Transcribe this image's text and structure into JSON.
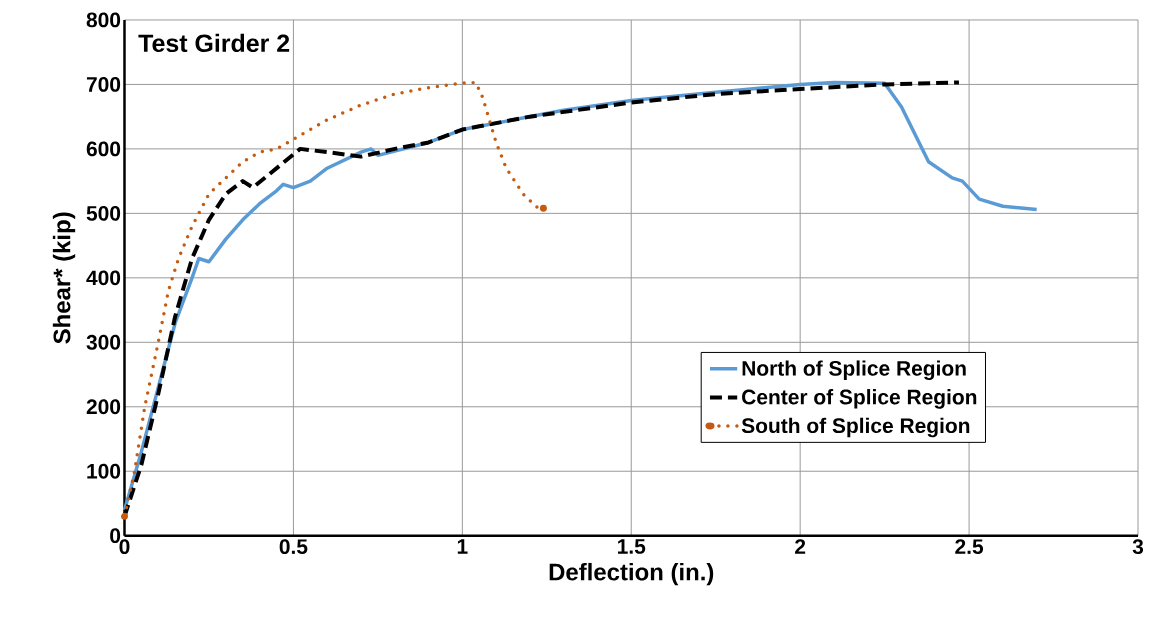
{
  "chart_data": {
    "type": "line",
    "title": "Test Girder 2",
    "xlabel": "Deflection (in.)",
    "ylabel": "Shear* (kip)",
    "xlim": [
      0,
      3
    ],
    "ylim": [
      0,
      800
    ],
    "xticks": [
      0,
      0.5,
      1,
      1.5,
      2,
      2.5,
      3
    ],
    "yticks": [
      0,
      100,
      200,
      300,
      400,
      500,
      600,
      700,
      800
    ],
    "grid": true,
    "legend": "bottom right",
    "series": [
      {
        "name": "North of Splice Region",
        "color": "#5b9bd5",
        "line_style": "solid",
        "x": [
          0,
          0.05,
          0.1,
          0.15,
          0.2,
          0.22,
          0.25,
          0.3,
          0.35,
          0.4,
          0.45,
          0.47,
          0.5,
          0.55,
          0.6,
          0.7,
          0.73,
          0.75,
          0.9,
          1.0,
          1.1,
          1.3,
          1.5,
          1.75,
          2.0,
          2.1,
          2.25,
          2.3,
          2.38,
          2.45,
          2.48,
          2.53,
          2.6,
          2.7
        ],
        "values": [
          40,
          130,
          230,
          330,
          400,
          430,
          425,
          460,
          490,
          515,
          535,
          545,
          540,
          550,
          570,
          595,
          600,
          590,
          610,
          630,
          640,
          660,
          675,
          688,
          700,
          703,
          702,
          665,
          580,
          555,
          550,
          522,
          511,
          506
        ]
      },
      {
        "name": "Center of Splice Region",
        "color": "#000000",
        "line_style": "dashed",
        "x": [
          0,
          0.05,
          0.1,
          0.15,
          0.2,
          0.25,
          0.3,
          0.35,
          0.38,
          0.45,
          0.52,
          0.6,
          0.7,
          0.8,
          0.9,
          1.0,
          1.05,
          1.2,
          1.5,
          1.75,
          2.0,
          2.25,
          2.47
        ],
        "values": [
          30,
          110,
          220,
          340,
          430,
          490,
          530,
          550,
          540,
          570,
          600,
          595,
          588,
          600,
          610,
          630,
          635,
          650,
          672,
          685,
          693,
          700,
          703
        ]
      },
      {
        "name": "South of Splice Region",
        "color": "#c55a11",
        "line_style": "dotted",
        "x": [
          0,
          0.03,
          0.06,
          0.1,
          0.13,
          0.16,
          0.2,
          0.25,
          0.3,
          0.35,
          0.4,
          0.45,
          0.5,
          0.6,
          0.7,
          0.8,
          0.9,
          1.0,
          1.04,
          1.06,
          1.08,
          1.1,
          1.13,
          1.18,
          1.22,
          1.24
        ],
        "values": [
          30,
          100,
          200,
          300,
          380,
          430,
          480,
          530,
          555,
          580,
          595,
          600,
          615,
          645,
          668,
          685,
          695,
          702,
          703,
          680,
          645,
          610,
          570,
          530,
          510,
          508
        ]
      }
    ]
  }
}
